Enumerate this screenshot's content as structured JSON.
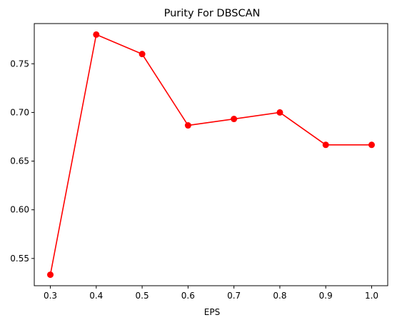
{
  "chart_data": {
    "type": "line",
    "title": "Purity For DBSCAN",
    "xlabel": "EPS",
    "ylabel": "",
    "x": [
      0.3,
      0.4,
      0.5,
      0.6,
      0.7,
      0.8,
      0.9,
      1.0
    ],
    "series": [
      {
        "name": "purity",
        "values": [
          0.5333,
          0.78,
          0.76,
          0.6867,
          0.6933,
          0.7,
          0.6667,
          0.6667
        ],
        "color": "#ff0000",
        "marker": "circle"
      }
    ],
    "xlim": [
      0.265,
      1.035
    ],
    "ylim": [
      0.522,
      0.7913
    ],
    "xticks": [
      0.3,
      0.4,
      0.5,
      0.6,
      0.7,
      0.8,
      0.9,
      1.0
    ],
    "xtick_labels": [
      "0.3",
      "0.4",
      "0.5",
      "0.6",
      "0.7",
      "0.8",
      "0.9",
      "1.0"
    ],
    "yticks": [
      0.55,
      0.6,
      0.65,
      0.7,
      0.75
    ],
    "ytick_labels": [
      "0.55",
      "0.60",
      "0.65",
      "0.70",
      "0.75"
    ],
    "grid": false,
    "legend": "none"
  }
}
